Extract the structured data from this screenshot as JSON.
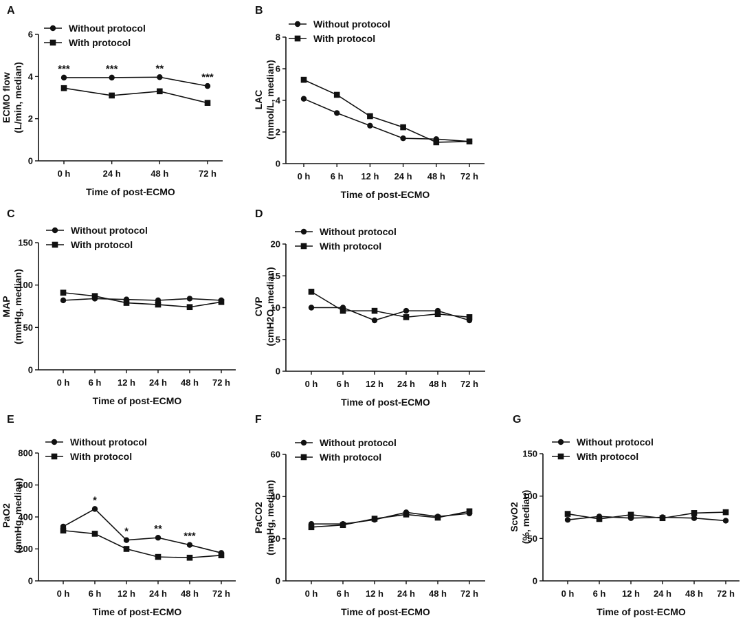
{
  "figure": {
    "legend": {
      "without": "Without protocol",
      "with": "With protocol"
    },
    "xlabel": "Time of post-ECMO"
  },
  "chart_data": [
    {
      "panel": "A",
      "type": "line",
      "categories": [
        "0 h",
        "24 h",
        "48 h",
        "72 h"
      ],
      "ylabel": "ECMO flow",
      "ylabel2": "(L/min, median)",
      "ylim": [
        0,
        6
      ],
      "yticks": [
        0,
        2,
        4,
        6
      ],
      "series": [
        {
          "name": "Without protocol",
          "marker": "circle",
          "values": [
            3.95,
            3.95,
            3.97,
            3.55
          ]
        },
        {
          "name": "With protocol",
          "marker": "square",
          "values": [
            3.45,
            3.1,
            3.3,
            2.75
          ]
        }
      ],
      "annotations": [
        "***",
        "***",
        "**",
        "***"
      ]
    },
    {
      "panel": "B",
      "type": "line",
      "categories": [
        "0 h",
        "6 h",
        "12 h",
        "24 h",
        "48 h",
        "72 h"
      ],
      "ylabel": "LAC",
      "ylabel2": "(mmol/L, median)",
      "ylim": [
        0,
        8
      ],
      "yticks": [
        0,
        2,
        4,
        6,
        8
      ],
      "series": [
        {
          "name": "Without protocol",
          "marker": "circle",
          "values": [
            4.1,
            3.2,
            2.4,
            1.6,
            1.55,
            1.4
          ]
        },
        {
          "name": "With protocol",
          "marker": "square",
          "values": [
            5.3,
            4.35,
            3.0,
            2.3,
            1.35,
            1.4
          ]
        }
      ],
      "annotations": []
    },
    {
      "panel": "C",
      "type": "line",
      "categories": [
        "0 h",
        "6 h",
        "12 h",
        "24 h",
        "48 h",
        "72 h"
      ],
      "ylabel": "MAP",
      "ylabel2": "(mmHg, median)",
      "ylim": [
        0,
        150
      ],
      "yticks": [
        0,
        50,
        100,
        150
      ],
      "series": [
        {
          "name": "Without protocol",
          "marker": "circle",
          "values": [
            82,
            84,
            83,
            82,
            84,
            82
          ]
        },
        {
          "name": "With protocol",
          "marker": "square",
          "values": [
            91,
            87,
            79,
            77,
            74,
            80
          ]
        }
      ],
      "annotations": []
    },
    {
      "panel": "D",
      "type": "line",
      "categories": [
        "0 h",
        "6 h",
        "12 h",
        "24 h",
        "48 h",
        "72 h"
      ],
      "ylabel": "CVP",
      "ylabel2": "(cmH2O, median)",
      "ylim": [
        0,
        20
      ],
      "yticks": [
        0,
        5,
        10,
        15,
        20
      ],
      "series": [
        {
          "name": "Without protocol",
          "marker": "circle",
          "values": [
            10,
            10,
            8,
            9.5,
            9.5,
            8
          ]
        },
        {
          "name": "With protocol",
          "marker": "square",
          "values": [
            12.5,
            9.5,
            9.5,
            8.5,
            9,
            8.5
          ]
        }
      ],
      "annotations": []
    },
    {
      "panel": "E",
      "type": "line",
      "categories": [
        "0 h",
        "6 h",
        "12 h",
        "24 h",
        "48 h",
        "72 h"
      ],
      "ylabel": "PaO2",
      "ylabel2": "(mmHg, median)",
      "ylim": [
        0,
        800
      ],
      "yticks": [
        0,
        200,
        400,
        600,
        800
      ],
      "series": [
        {
          "name": "Without protocol",
          "marker": "circle",
          "values": [
            340,
            450,
            255,
            270,
            225,
            175
          ]
        },
        {
          "name": "With protocol",
          "marker": "square",
          "values": [
            315,
            295,
            200,
            150,
            145,
            160
          ]
        }
      ],
      "annotations": [
        "",
        "*",
        "*",
        "**",
        "***",
        ""
      ]
    },
    {
      "panel": "F",
      "type": "line",
      "categories": [
        "0 h",
        "6 h",
        "12 h",
        "24 h",
        "48 h",
        "72 h"
      ],
      "ylabel": "PaCO2",
      "ylabel2": "(mmHg, median)",
      "ylim": [
        0,
        60
      ],
      "yticks": [
        0,
        20,
        40,
        60
      ],
      "series": [
        {
          "name": "Without protocol",
          "marker": "circle",
          "values": [
            27,
            27,
            29,
            32.5,
            30.5,
            32
          ]
        },
        {
          "name": "With protocol",
          "marker": "square",
          "values": [
            25.5,
            26.5,
            29.5,
            31.5,
            30,
            33
          ]
        }
      ],
      "annotations": []
    },
    {
      "panel": "G",
      "type": "line",
      "categories": [
        "0 h",
        "6 h",
        "12 h",
        "24 h",
        "48 h",
        "72 h"
      ],
      "ylabel": "ScvO2",
      "ylabel2": "(%, median)",
      "ylim": [
        0,
        150
      ],
      "yticks": [
        0,
        50,
        100,
        150
      ],
      "series": [
        {
          "name": "Without protocol",
          "marker": "circle",
          "values": [
            72,
            76,
            74,
            75,
            74,
            71
          ]
        },
        {
          "name": "With protocol",
          "marker": "square",
          "values": [
            79,
            73,
            78,
            74,
            80,
            81
          ]
        }
      ],
      "annotations": []
    }
  ]
}
